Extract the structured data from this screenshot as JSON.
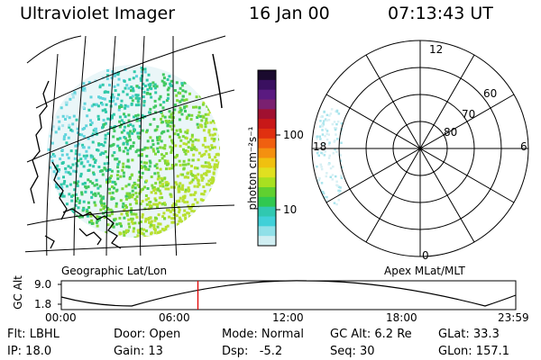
{
  "header": {
    "title": "Ultraviolet Imager",
    "date": "16 Jan 00",
    "time": "07:13:43 UT"
  },
  "panels": {
    "left_caption": "Geographic Lat/Lon",
    "right_caption": "Apex MLat/MLT"
  },
  "colorbar": {
    "unit_label": "photon cm⁻²s⁻¹",
    "ticks": [
      "100",
      "10"
    ],
    "colors": [
      "#1a0a2e",
      "#3a1060",
      "#5a1a80",
      "#7a2070",
      "#a01030",
      "#c81818",
      "#e03010",
      "#f06010",
      "#f49010",
      "#f0c010",
      "#e0e020",
      "#a8e020",
      "#60d030",
      "#30c850",
      "#30c8b0",
      "#40d0d8",
      "#90e0e8",
      "#d0eef2"
    ]
  },
  "polar_labels": {
    "mlt": [
      "12",
      "6",
      "18",
      "0"
    ],
    "mlat": [
      "60",
      "70",
      "80"
    ]
  },
  "timeline": {
    "ylabel": "GC Alt",
    "y_ticks": [
      "9.0",
      "1.8"
    ],
    "x_ticks": [
      "00:00",
      "06:00",
      "12:00",
      "18:00",
      "23:59"
    ],
    "marker_time": "07:13"
  },
  "status": {
    "flt": "Flt: LBHL",
    "door": "Door: Open",
    "mode": "Mode: Normal",
    "gcalt": "GC Alt: 6.2 Re",
    "glat": "GLat: 33.3",
    "ip": "IP: 18.0",
    "gain": "Gain: 13",
    "dsp": "Dsp:   -5.2",
    "seq": "Seq: 30",
    "glon": "GLon: 157.1"
  }
}
